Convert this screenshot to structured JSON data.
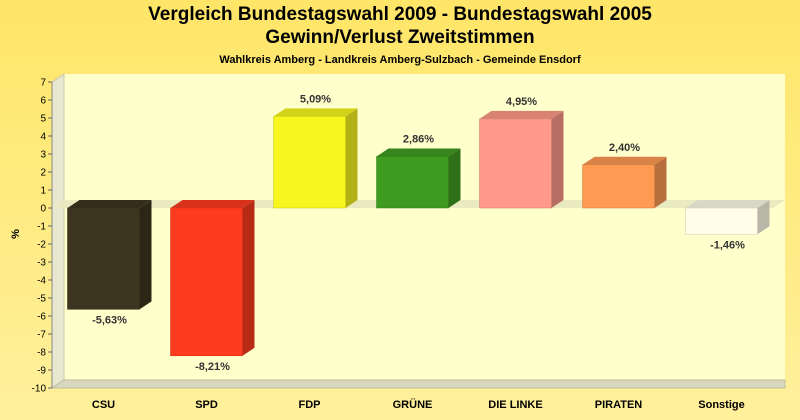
{
  "title": "Vergleich Bundestagswahl 2009 - Bundestagswahl 2005",
  "title2": "Gewinn/Verlust Zweitstimmen",
  "subtitle": "Wahlkreis Amberg - Landkreis Amberg-Sulzbach - Gemeinde Ensdorf",
  "chart_data": {
    "type": "bar",
    "categories": [
      "CSU",
      "SPD",
      "FDP",
      "GRÜNE",
      "DIE LINKE",
      "PIRATEN",
      "Sonstige"
    ],
    "values": [
      -5.63,
      -8.21,
      5.09,
      2.86,
      4.95,
      2.4,
      -1.46
    ],
    "value_labels": [
      "-5,63%",
      "-8,21%",
      "5,09%",
      "2,86%",
      "4,95%",
      "2,40%",
      "-1,46%"
    ],
    "colors": [
      "#3d3520",
      "#ff3b1f",
      "#f7f71e",
      "#3f9b20",
      "#ff9a8a",
      "#ff9a52",
      "#fffde8"
    ],
    "ylabel": "%",
    "ylim": [
      -10,
      7
    ],
    "yticks": [
      7,
      6,
      5,
      4,
      3,
      2,
      1,
      0,
      -1,
      -2,
      -3,
      -4,
      -5,
      -6,
      -7,
      -8,
      -9,
      -10
    ],
    "grid": false
  }
}
